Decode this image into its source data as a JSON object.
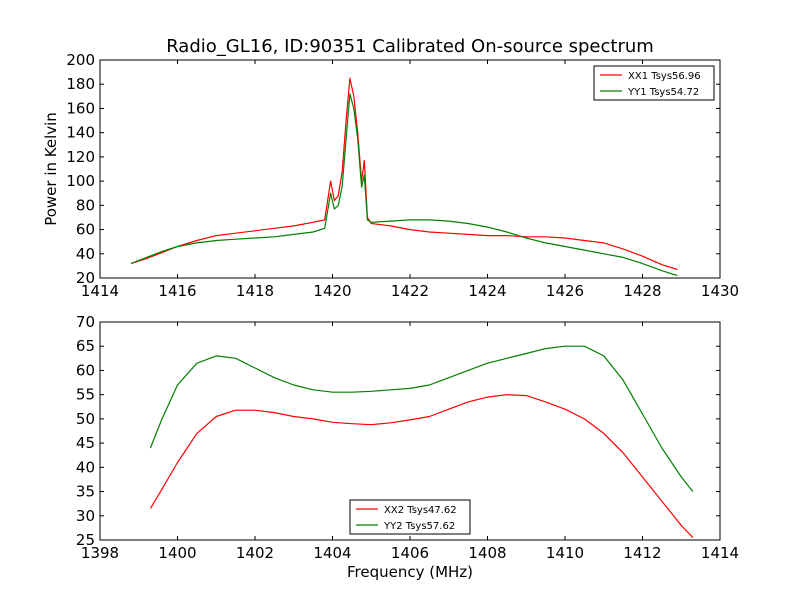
{
  "chart_data": [
    {
      "type": "line",
      "title": "Radio_GL16, ID:90351 Calibrated On-source spectrum",
      "xlabel": "",
      "ylabel": "Power in Kelvin",
      "xlim": [
        1414,
        1430
      ],
      "ylim": [
        20,
        200
      ],
      "xticks": [
        1414,
        1416,
        1418,
        1420,
        1422,
        1424,
        1426,
        1428,
        1430
      ],
      "yticks": [
        20,
        40,
        60,
        80,
        100,
        120,
        140,
        160,
        180,
        200
      ],
      "grid": false,
      "legend_position": "top-right",
      "series": [
        {
          "name": "XX1 Tsys56.96",
          "color": "#ff0000",
          "x": [
            1414.8,
            1415.2,
            1415.6,
            1416.0,
            1416.5,
            1417.0,
            1417.5,
            1418.0,
            1418.5,
            1419.0,
            1419.5,
            1419.8,
            1419.95,
            1420.05,
            1420.15,
            1420.25,
            1420.35,
            1420.45,
            1420.55,
            1420.65,
            1420.75,
            1420.82,
            1420.9,
            1421.0,
            1421.5,
            1422.0,
            1422.5,
            1423.0,
            1423.5,
            1424.0,
            1424.5,
            1425.0,
            1425.5,
            1426.0,
            1426.5,
            1427.0,
            1427.5,
            1428.0,
            1428.5,
            1428.9
          ],
          "y": [
            32,
            36,
            41,
            46,
            51,
            55,
            57,
            59,
            61,
            63,
            66,
            68,
            100,
            84,
            88,
            108,
            150,
            185,
            170,
            140,
            100,
            117,
            70,
            65,
            63,
            60,
            58,
            57,
            56,
            55,
            55,
            54,
            54,
            53,
            51,
            49,
            44,
            38,
            31,
            27
          ]
        },
        {
          "name": "YY1 Tsys54.72",
          "color": "#008000",
          "x": [
            1414.8,
            1415.2,
            1415.6,
            1416.0,
            1416.5,
            1417.0,
            1417.5,
            1418.0,
            1418.5,
            1419.0,
            1419.5,
            1419.8,
            1419.95,
            1420.05,
            1420.15,
            1420.25,
            1420.35,
            1420.45,
            1420.55,
            1420.65,
            1420.75,
            1420.82,
            1420.9,
            1421.0,
            1421.5,
            1422.0,
            1422.5,
            1423.0,
            1423.5,
            1424.0,
            1424.5,
            1425.0,
            1425.5,
            1426.0,
            1426.5,
            1427.0,
            1427.5,
            1428.0,
            1428.5,
            1428.9
          ],
          "y": [
            32,
            37,
            42,
            46,
            49,
            51,
            52,
            53,
            54,
            56,
            58,
            61,
            90,
            77,
            80,
            96,
            135,
            172,
            160,
            135,
            95,
            105,
            68,
            66,
            67,
            68,
            68,
            67,
            65,
            62,
            58,
            53,
            49,
            46,
            43,
            40,
            37,
            32,
            26,
            22
          ]
        }
      ]
    },
    {
      "type": "line",
      "title": "",
      "xlabel": "Frequency (MHz)",
      "ylabel": "",
      "xlim": [
        1398,
        1414
      ],
      "ylim": [
        25,
        70
      ],
      "xticks": [
        1398,
        1400,
        1402,
        1404,
        1406,
        1408,
        1410,
        1412,
        1414
      ],
      "yticks": [
        25,
        30,
        35,
        40,
        45,
        50,
        55,
        60,
        65,
        70
      ],
      "grid": false,
      "legend_position": "bottom-center",
      "series": [
        {
          "name": "XX2 Tsys47.62",
          "color": "#ff0000",
          "x": [
            1399.3,
            1399.6,
            1400.0,
            1400.5,
            1401.0,
            1401.5,
            1402.0,
            1402.5,
            1403.0,
            1403.5,
            1404.0,
            1404.5,
            1405.0,
            1405.5,
            1406.0,
            1406.5,
            1407.0,
            1407.5,
            1408.0,
            1408.5,
            1409.0,
            1409.5,
            1410.0,
            1410.5,
            1411.0,
            1411.5,
            1412.0,
            1412.5,
            1413.0,
            1413.3
          ],
          "y": [
            31.5,
            35.5,
            41,
            47,
            50.5,
            51.8,
            51.8,
            51.3,
            50.5,
            50,
            49.3,
            49,
            48.8,
            49.2,
            49.8,
            50.5,
            52,
            53.5,
            54.5,
            55,
            54.8,
            53.5,
            52,
            50,
            47,
            43,
            38,
            33,
            28,
            25.5
          ]
        },
        {
          "name": "YY2 Tsys57.62",
          "color": "#008000",
          "x": [
            1399.3,
            1399.6,
            1400.0,
            1400.5,
            1401.0,
            1401.5,
            1402.0,
            1402.5,
            1403.0,
            1403.5,
            1404.0,
            1404.5,
            1405.0,
            1405.5,
            1406.0,
            1406.5,
            1407.0,
            1407.5,
            1408.0,
            1408.5,
            1409.0,
            1409.5,
            1410.0,
            1410.5,
            1411.0,
            1411.5,
            1412.0,
            1412.5,
            1413.0,
            1413.3
          ],
          "y": [
            44,
            50,
            57,
            61.5,
            63,
            62.5,
            60.5,
            58.5,
            57,
            56,
            55.5,
            55.5,
            55.7,
            56,
            56.3,
            57,
            58.5,
            60,
            61.5,
            62.5,
            63.5,
            64.5,
            65,
            65,
            63,
            58,
            51,
            44,
            38,
            35
          ]
        }
      ]
    }
  ]
}
